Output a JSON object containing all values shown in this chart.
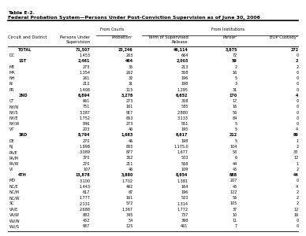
{
  "title1": "Table E-2.",
  "title2": "Federal Probation System—Persons Under Post-Conviction Supervision as of June 30, 2006",
  "rows": [
    [
      "",
      "TOTAL",
      "71,507",
      "23,246",
      "46,114",
      "3,875",
      "272"
    ],
    [
      "DC",
      "",
      "1,453",
      "263",
      "664",
      "72",
      "0"
    ],
    [
      "",
      "1ST",
      "2,461",
      "464",
      "2,003",
      "59",
      "2"
    ],
    [
      "ME",
      "",
      "273",
      "35",
      "213",
      "2",
      "2"
    ],
    [
      "MA",
      "",
      "1,354",
      "262",
      "558",
      "16",
      "0"
    ],
    [
      "NH",
      "",
      "261",
      "32",
      "196",
      "5",
      "0"
    ],
    [
      "RI",
      "",
      "212",
      "31",
      "198",
      "3",
      "0"
    ],
    [
      "PR",
      "",
      "1,408",
      "115",
      "1,295",
      "31",
      "0"
    ],
    [
      "",
      "2ND",
      "6,894",
      "3,278",
      "6,652",
      "170",
      "4"
    ],
    [
      "CT",
      "",
      "661",
      "273",
      "358",
      "17",
      "0"
    ],
    [
      "NY/N",
      "",
      "751",
      "161",
      "585",
      "16",
      "0"
    ],
    [
      "NY/S",
      "",
      "3,387",
      "917",
      "2,880",
      "56",
      "0"
    ],
    [
      "NY/E",
      "",
      "1,752",
      "863",
      "3,133",
      "84",
      "0"
    ],
    [
      "NY/W",
      "",
      "846",
      "273",
      "551",
      "5",
      "0"
    ],
    [
      "VT",
      "",
      "203",
      "46",
      "195",
      "5",
      "4"
    ],
    [
      "",
      "3RD",
      "8,794",
      "1,683",
      "6,617",
      "212",
      "89"
    ],
    [
      "DE",
      "",
      "270",
      "46",
      "198",
      "5",
      "1"
    ],
    [
      "NJ",
      "",
      "1,898",
      "865",
      "1,175.0",
      "104",
      "2"
    ],
    [
      "PA/E",
      "",
      "3,089",
      "877",
      "1,677",
      "53",
      "33"
    ],
    [
      "PA/M",
      "",
      "370",
      "362",
      "503",
      "6",
      "12"
    ],
    [
      "PA/W",
      "",
      "270",
      "211",
      "568",
      "44",
      "1"
    ],
    [
      "VI",
      "",
      "107",
      "46",
      "109",
      "45",
      "2"
    ],
    [
      "",
      "4TH",
      "13,878",
      "3,880",
      "8,854",
      "888",
      "44"
    ],
    [
      "MD",
      "",
      "3,100",
      "1,702",
      "1,381",
      "207",
      "0"
    ],
    [
      "NC/E",
      "",
      "1,443",
      "492",
      "164",
      "45",
      "4"
    ],
    [
      "NC/M",
      "",
      "617",
      "87",
      "196",
      "122",
      "2"
    ],
    [
      "NC/W",
      "",
      "1,777",
      "161",
      "523",
      "56",
      "2"
    ],
    [
      "SC",
      "",
      "2,131",
      "572",
      "1,314",
      "105",
      "2"
    ],
    [
      "VA/E",
      "",
      "2,688",
      "1,367",
      "1,772",
      "37",
      "12"
    ],
    [
      "VA/W",
      "",
      "882",
      "345",
      "737",
      "10",
      "16"
    ],
    [
      "WV/N",
      "",
      "452",
      "54",
      "398",
      "11",
      "0"
    ],
    [
      "WV/S",
      "",
      "937",
      "125",
      "461",
      "7",
      "0"
    ]
  ],
  "circuit_bold_rows": [
    0,
    2,
    8,
    15,
    22
  ],
  "title_fontsize": 4.5,
  "header_fontsize": 3.8,
  "data_fontsize": 3.5,
  "bg_color": "#ffffff"
}
